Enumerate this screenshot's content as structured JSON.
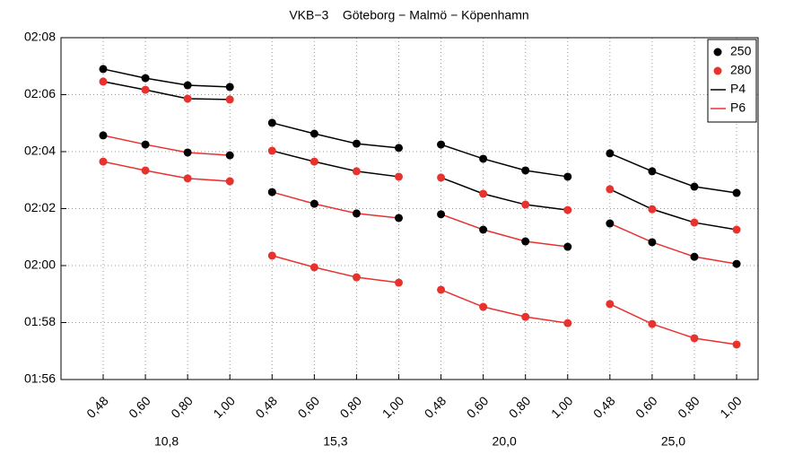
{
  "chart_data": {
    "type": "grouped-line",
    "title": "VKB−3    Göteborg − Malmö − Köpenhamn",
    "ylim": [
      116,
      128
    ],
    "yticks": [
      {
        "value": 116,
        "label": "01:56"
      },
      {
        "value": 118,
        "label": "01:58"
      },
      {
        "value": 120,
        "label": "02:00"
      },
      {
        "value": 122,
        "label": "02:02"
      },
      {
        "value": 124,
        "label": "02:04"
      },
      {
        "value": 126,
        "label": "02:06"
      },
      {
        "value": 128,
        "label": "02:08"
      }
    ],
    "grid": true,
    "legend_position": "upper right",
    "legend": {
      "markers": [
        {
          "name": "250",
          "color": "#000000"
        },
        {
          "name": "280",
          "color": "#e8322e"
        }
      ],
      "lines": [
        {
          "name": "P4",
          "color": "#000000"
        },
        {
          "name": "P6",
          "color": "#e8322e"
        }
      ]
    },
    "groups": [
      {
        "label": "10,8",
        "categories": [
          "0,48",
          "0,60",
          "0,80",
          "1,00"
        ],
        "series": [
          {
            "marker_color": "#000000",
            "line_color": "#000000",
            "values": [
              126.9,
              126.58,
              126.33,
              126.27
            ]
          },
          {
            "marker_color": "#e8322e",
            "line_color": "#000000",
            "values": [
              126.46,
              126.17,
              125.86,
              125.83
            ]
          },
          {
            "marker_color": "#000000",
            "line_color": "#e8322e",
            "values": [
              124.57,
              124.25,
              123.97,
              123.87
            ]
          },
          {
            "marker_color": "#e8322e",
            "line_color": "#e8322e",
            "values": [
              123.65,
              123.34,
              123.06,
              122.96
            ]
          }
        ]
      },
      {
        "label": "15,3",
        "categories": [
          "0,48",
          "0,60",
          "0,80",
          "1,00"
        ],
        "series": [
          {
            "marker_color": "#000000",
            "line_color": "#000000",
            "values": [
              125.01,
              124.63,
              124.28,
              124.13
            ]
          },
          {
            "marker_color": "#e8322e",
            "line_color": "#000000",
            "values": [
              124.03,
              123.65,
              123.31,
              123.12
            ]
          },
          {
            "marker_color": "#000000",
            "line_color": "#e8322e",
            "values": [
              122.58,
              122.17,
              121.83,
              121.67
            ]
          },
          {
            "marker_color": "#e8322e",
            "line_color": "#e8322e",
            "values": [
              120.35,
              119.94,
              119.59,
              119.4
            ]
          }
        ]
      },
      {
        "label": "20,0",
        "categories": [
          "0,48",
          "0,60",
          "0,80",
          "1,00"
        ],
        "series": [
          {
            "marker_color": "#000000",
            "line_color": "#000000",
            "values": [
              124.25,
              123.75,
              123.34,
              123.12
            ]
          },
          {
            "marker_color": "#e8322e",
            "line_color": "#000000",
            "values": [
              123.09,
              122.52,
              122.14,
              121.95
            ]
          },
          {
            "marker_color": "#000000",
            "line_color": "#e8322e",
            "values": [
              121.8,
              121.26,
              120.85,
              120.66
            ]
          },
          {
            "marker_color": "#e8322e",
            "line_color": "#e8322e",
            "values": [
              119.15,
              118.55,
              118.2,
              117.98
            ]
          }
        ]
      },
      {
        "label": "25,0",
        "categories": [
          "0,48",
          "0,60",
          "0,80",
          "1,00"
        ],
        "series": [
          {
            "marker_color": "#000000",
            "line_color": "#000000",
            "values": [
              123.94,
              123.31,
              122.77,
              122.55
            ]
          },
          {
            "marker_color": "#e8322e",
            "line_color": "#000000",
            "values": [
              122.68,
              121.98,
              121.51,
              121.26
            ]
          },
          {
            "marker_color": "#000000",
            "line_color": "#e8322e",
            "values": [
              121.48,
              120.82,
              120.31,
              120.06
            ]
          },
          {
            "marker_color": "#e8322e",
            "line_color": "#e8322e",
            "values": [
              118.65,
              117.95,
              117.45,
              117.23
            ]
          }
        ]
      }
    ]
  }
}
